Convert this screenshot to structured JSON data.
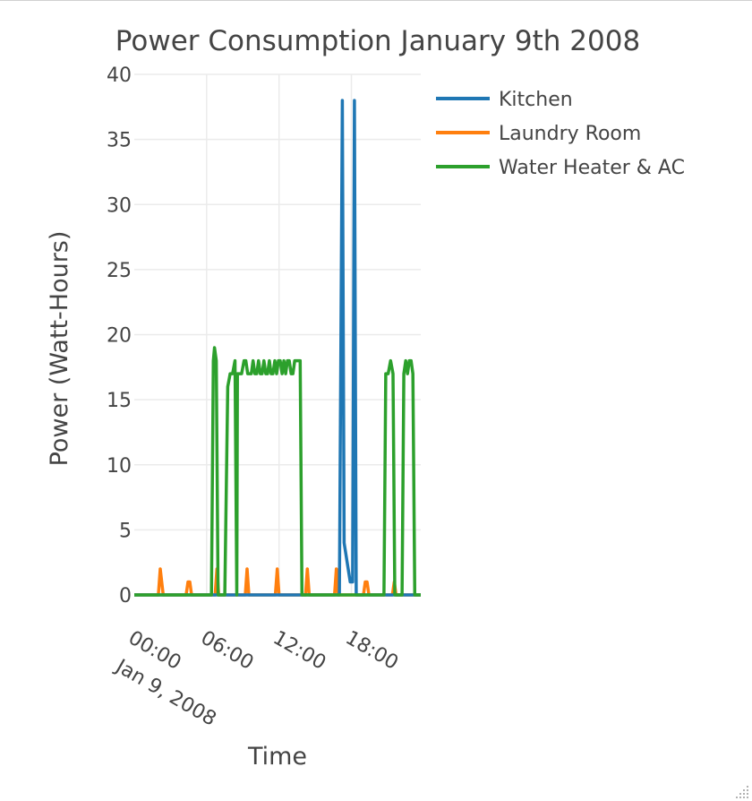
{
  "chart_data": {
    "type": "line",
    "title": "Power Consumption January 9th 2008",
    "xlabel": "Time",
    "ylabel": "Power (Watt-Hours)",
    "ylim": [
      0,
      40
    ],
    "y_ticks": [
      0,
      5,
      10,
      15,
      20,
      25,
      30,
      35,
      40
    ],
    "x_range_hours": [
      0,
      23.75
    ],
    "x_ticks": [
      {
        "hour": 0,
        "label": "00:00",
        "sublabel": "Jan 9, 2008"
      },
      {
        "hour": 6,
        "label": "06:00",
        "sublabel": ""
      },
      {
        "hour": 12,
        "label": "12:00",
        "sublabel": ""
      },
      {
        "hour": 18,
        "label": "18:00",
        "sublabel": ""
      }
    ],
    "grid": true,
    "legend_position": "top-right",
    "series": [
      {
        "name": "Kitchen",
        "color": "#1f77b4",
        "points": [
          [
            0,
            0
          ],
          [
            17.0,
            0
          ],
          [
            17.25,
            38
          ],
          [
            17.4,
            4
          ],
          [
            17.9,
            1
          ],
          [
            18.1,
            1
          ],
          [
            18.25,
            38
          ],
          [
            18.4,
            0
          ],
          [
            23.75,
            0
          ]
        ]
      },
      {
        "name": "Laundry Room",
        "color": "#ff7f0e",
        "points": [
          [
            0,
            0
          ],
          [
            2.0,
            0
          ],
          [
            2.15,
            2
          ],
          [
            2.4,
            0
          ],
          [
            4.3,
            0
          ],
          [
            4.45,
            1
          ],
          [
            4.6,
            1
          ],
          [
            4.75,
            0
          ],
          [
            6.7,
            0
          ],
          [
            6.85,
            2
          ],
          [
            7.0,
            0
          ],
          [
            9.2,
            0
          ],
          [
            9.35,
            2
          ],
          [
            9.5,
            0
          ],
          [
            11.7,
            0
          ],
          [
            11.85,
            2
          ],
          [
            12.0,
            0
          ],
          [
            14.2,
            0
          ],
          [
            14.35,
            2
          ],
          [
            14.5,
            0
          ],
          [
            16.6,
            0
          ],
          [
            16.75,
            2
          ],
          [
            16.9,
            0
          ],
          [
            19.0,
            0
          ],
          [
            19.15,
            1
          ],
          [
            19.3,
            1
          ],
          [
            19.45,
            0
          ],
          [
            21.4,
            0
          ],
          [
            21.55,
            1
          ],
          [
            21.7,
            0
          ],
          [
            23.75,
            0
          ]
        ]
      },
      {
        "name": "Water Heater & AC",
        "color": "#2ca02c",
        "points": [
          [
            0,
            0
          ],
          [
            6.4,
            0
          ],
          [
            6.55,
            18
          ],
          [
            6.65,
            19
          ],
          [
            6.8,
            18
          ],
          [
            6.95,
            0
          ],
          [
            7.5,
            0
          ],
          [
            7.75,
            16
          ],
          [
            7.95,
            17
          ],
          [
            8.15,
            17
          ],
          [
            8.35,
            18
          ],
          [
            8.5,
            0
          ],
          [
            8.55,
            17
          ],
          [
            8.7,
            17
          ],
          [
            8.9,
            17
          ],
          [
            9.1,
            18
          ],
          [
            9.25,
            18
          ],
          [
            9.4,
            17
          ],
          [
            9.55,
            17
          ],
          [
            9.7,
            17
          ],
          [
            9.85,
            18
          ],
          [
            10.0,
            17
          ],
          [
            10.15,
            17
          ],
          [
            10.3,
            18
          ],
          [
            10.45,
            17
          ],
          [
            10.6,
            17
          ],
          [
            10.75,
            18
          ],
          [
            10.9,
            17
          ],
          [
            11.05,
            17
          ],
          [
            11.2,
            18
          ],
          [
            11.35,
            17
          ],
          [
            11.5,
            17
          ],
          [
            11.65,
            18
          ],
          [
            11.8,
            17
          ],
          [
            11.95,
            18
          ],
          [
            12.1,
            18
          ],
          [
            12.25,
            17
          ],
          [
            12.4,
            18
          ],
          [
            12.55,
            17
          ],
          [
            12.7,
            18
          ],
          [
            12.85,
            18
          ],
          [
            13.0,
            17
          ],
          [
            13.15,
            17
          ],
          [
            13.3,
            18
          ],
          [
            13.45,
            18
          ],
          [
            13.6,
            18
          ],
          [
            13.75,
            18
          ],
          [
            13.9,
            0
          ],
          [
            20.7,
            0
          ],
          [
            20.85,
            17
          ],
          [
            21.05,
            17
          ],
          [
            21.25,
            18
          ],
          [
            21.45,
            17
          ],
          [
            21.6,
            0
          ],
          [
            22.2,
            0
          ],
          [
            22.35,
            17
          ],
          [
            22.5,
            18
          ],
          [
            22.65,
            17
          ],
          [
            22.8,
            18
          ],
          [
            22.95,
            18
          ],
          [
            23.1,
            17
          ],
          [
            23.25,
            0
          ],
          [
            23.75,
            0
          ]
        ]
      }
    ]
  }
}
